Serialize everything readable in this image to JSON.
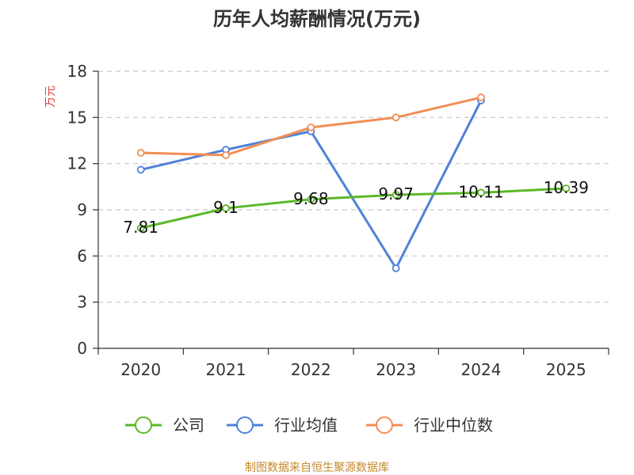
{
  "chart_data": {
    "type": "line",
    "title": "历年人均薪酬情况(万元)",
    "ylabel": "万元",
    "categories": [
      "2020",
      "2021",
      "2022",
      "2023",
      "2024",
      "2025"
    ],
    "ylim": [
      0,
      18
    ],
    "yticks": [
      0,
      3,
      6,
      9,
      12,
      15,
      18
    ],
    "grid": true,
    "legend_position": "bottom",
    "series": [
      {
        "name": "公司",
        "color": "#5cb82a",
        "values": [
          7.81,
          9.1,
          9.68,
          9.97,
          10.11,
          10.39
        ],
        "labels": [
          "7.81",
          "9.1",
          "9.68",
          "9.97",
          "10.11",
          "10.39"
        ]
      },
      {
        "name": "行业均值",
        "color": "#4f81d9",
        "values": [
          11.6,
          12.9,
          14.1,
          5.2,
          16.1,
          null
        ]
      },
      {
        "name": "行业中位数",
        "color": "#f28e55",
        "values": [
          12.7,
          12.55,
          14.35,
          15.0,
          16.3,
          null
        ]
      }
    ]
  },
  "footer": "制图数据来自恒生聚源数据库"
}
